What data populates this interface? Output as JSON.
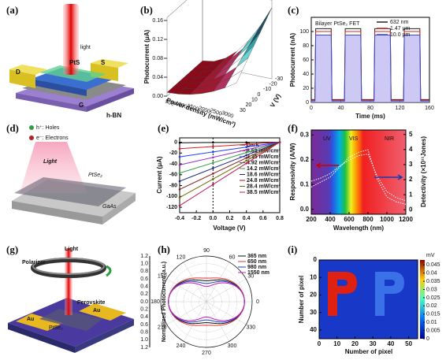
{
  "panels": {
    "a": {
      "label": "(a)",
      "light": "light",
      "d": "D",
      "s": "S",
      "pts": "PtS",
      "g": "G",
      "hbn": "h-BN"
    },
    "b": {
      "label": "(b)",
      "ylabel": "Photocurrent (μA)",
      "yticks": [
        "0.00",
        "0.04",
        "0.08",
        "0.12",
        "0.16"
      ],
      "xlabel": "Power density (mW/cm²)",
      "xticks": [
        "500",
        "1000",
        "1500",
        "2000",
        "2500",
        "3000"
      ],
      "zlabel": "V (V)",
      "zticks": [
        "30",
        "20",
        "10",
        "0",
        "-10",
        "-20",
        "-30"
      ]
    },
    "c": {
      "label": "(c)",
      "title": "Bilayer PtSe₂ FET",
      "xlabel": "Time (ms)",
      "ylabel": "Photocurrent (nA)",
      "xlim": [
        0,
        160
      ],
      "ylim": [
        0,
        120
      ],
      "xticks": [
        0,
        40,
        80,
        120,
        160
      ],
      "yticks": [
        0,
        20,
        40,
        60,
        80,
        100
      ],
      "x": [
        0,
        5,
        6,
        27,
        28,
        45,
        46,
        67,
        68,
        85,
        86,
        107,
        108,
        125,
        126,
        147,
        148,
        160
      ],
      "series": [
        {
          "name": "632 nm",
          "color": "#222222",
          "values": [
            4,
            4,
            104,
            104,
            4,
            4,
            104,
            104,
            4,
            4,
            104,
            104,
            4,
            4,
            104,
            104,
            4,
            4
          ]
        },
        {
          "name": "1.47 μm",
          "color": "#d62728",
          "values": [
            3,
            3,
            100,
            100,
            3,
            3,
            100,
            100,
            3,
            3,
            100,
            100,
            3,
            3,
            100,
            100,
            3,
            3
          ]
        },
        {
          "name": "10.0 μm",
          "color": "#3b4cc0",
          "values": [
            2,
            2,
            95,
            95,
            2,
            2,
            95,
            95,
            2,
            2,
            95,
            95,
            2,
            2,
            95,
            95,
            2,
            2
          ]
        }
      ]
    },
    "d": {
      "label": "(d)",
      "holes": "h⁺: Holes",
      "electrons": "e⁻: Electrons",
      "light": "Light",
      "ptse2": "PtSe₂",
      "gaas": "GaAs"
    },
    "e": {
      "label": "(e)",
      "xlabel": "Voltage (V)",
      "ylabel": "Current (μA)",
      "xlim": [
        -0.4,
        0.8
      ],
      "ylim": [
        -130,
        8
      ],
      "xticks": [
        -0.4,
        -0.2,
        {
          "value": 0,
          "label": "0.0"
        },
        0.2,
        0.4,
        0.6,
        0.8
      ],
      "yticks": [
        0,
        -20,
        -40,
        -60,
        -80,
        -100,
        -120
      ],
      "x": [
        -0.4,
        0,
        0.4,
        0.8
      ],
      "series": [
        {
          "name": "Dark",
          "color": "#000000",
          "values": [
            -1,
            -0.6,
            -0.3,
            0
          ]
        },
        {
          "name": "8.52 mW/cm²",
          "color": "#e31a1c",
          "values": [
            -12,
            -8,
            -4,
            0
          ]
        },
        {
          "name": "3.35 mW/cm²",
          "color": "#1f3cff",
          "values": [
            -27,
            -18,
            -9,
            0
          ]
        },
        {
          "name": "4.92 mW/cm²",
          "color": "#9b30c8",
          "values": [
            -42,
            -28,
            -14,
            0
          ]
        },
        {
          "name": "14.2 mW/cm²",
          "color": "#2e9e3e",
          "values": [
            -57,
            -38,
            -19,
            0
          ]
        },
        {
          "name": "18.6 mW/cm²",
          "color": "#1a237e",
          "values": [
            -72,
            -48,
            -24,
            0
          ]
        },
        {
          "name": "24.8 mW/cm²",
          "color": "#8b1a1a",
          "values": [
            -87,
            -58,
            -29,
            0
          ]
        },
        {
          "name": "28.4 mW/cm²",
          "color": "#6b6b00",
          "values": [
            -102,
            -68,
            -34,
            0
          ]
        },
        {
          "name": "38.5 mW/cm²",
          "color": "#c2185b",
          "values": [
            -117,
            -78,
            -39,
            0
          ]
        }
      ]
    },
    "f": {
      "label": "(f)",
      "xlabel": "Wavelength (nm)",
      "ylabel": "Responsivity (A/W)",
      "y2label": "Detectivity (×10¹¹Jones)",
      "uv": "UV",
      "vis": "VIS",
      "nir": "NIR",
      "xlim": [
        200,
        1200
      ],
      "ylim": [
        -0.02,
        0.32
      ],
      "y2lim": [
        -0.3,
        5.3
      ],
      "xticks": [
        200,
        400,
        600,
        800,
        1000,
        1200
      ],
      "yticks": [
        {
          "value": 0,
          "label": "0.0"
        },
        0.1,
        0.2,
        0.3
      ],
      "y2ticks": [
        0,
        1,
        2,
        3,
        4,
        5
      ],
      "x": [
        200,
        300,
        400,
        500,
        600,
        700,
        800,
        900,
        1000,
        1100,
        1200
      ],
      "series": [
        {
          "name": "Responsivity",
          "color": "#ffffff",
          "values": [
            0.09,
            0.11,
            0.13,
            0.17,
            0.21,
            0.23,
            0.24,
            0.12,
            0.05,
            0.03,
            0.02
          ]
        },
        {
          "name": "Detectivity",
          "axis": "y2",
          "color": "#ffffff",
          "values": [
            1.9,
            2.1,
            2.4,
            2.9,
            3.3,
            3.6,
            3.7,
            2.2,
            1.2,
            0.8,
            0.6
          ]
        }
      ]
    },
    "g": {
      "label": "(g)",
      "light": "Light",
      "polarizer": "Polarizer",
      "au1": "Au",
      "au2": "Au",
      "perovskite": "Perovskite",
      "ptse2": "PtSe₂"
    },
    "h": {
      "label": "(h)",
      "ylabel": "Normalized Photocurrent (a.u.)",
      "angles": [
        0,
        30,
        60,
        90,
        120,
        150,
        180,
        210,
        240,
        270,
        300,
        330
      ],
      "rlim": [
        0,
        1.2
      ],
      "rticks": [
        {
          "value": 0,
          "label": "0.0"
        },
        {
          "value": 0.2,
          "label": "0.2"
        },
        {
          "value": 0.4,
          "label": "0.4"
        },
        {
          "value": 0.6,
          "label": "0.6"
        },
        {
          "value": 0.8,
          "label": "0.8"
        },
        {
          "value": 1,
          "label": "1.0"
        },
        {
          "value": 1.2,
          "label": "1.2"
        }
      ],
      "series": [
        {
          "name": "365 nm",
          "color": "#111111",
          "max": 1.0,
          "min": 0.55
        },
        {
          "name": "650 nm",
          "color": "#e53935",
          "max": 1.0,
          "min": 0.62
        },
        {
          "name": "980 nm",
          "color": "#1e40c8",
          "max": 1.0,
          "min": 0.48
        },
        {
          "name": "1550 nm",
          "color": "#c020c0",
          "max": 1.0,
          "min": 0.4
        }
      ]
    },
    "i": {
      "label": "(i)",
      "xlabel": "Number of pixel",
      "ylabel": "Number of pixel",
      "unit": "mV",
      "xlim": [
        0,
        55
      ],
      "ylim": [
        0,
        45
      ],
      "xticks": [
        0,
        10,
        20,
        30,
        40,
        50
      ],
      "yticks": [
        0,
        10,
        20,
        30,
        40
      ],
      "cticks": [
        0,
        0.005,
        0.01,
        0.015,
        0.02,
        0.025,
        0.03,
        0.035,
        0.04,
        0.045
      ],
      "clim": [
        0,
        0.048
      ]
    }
  }
}
